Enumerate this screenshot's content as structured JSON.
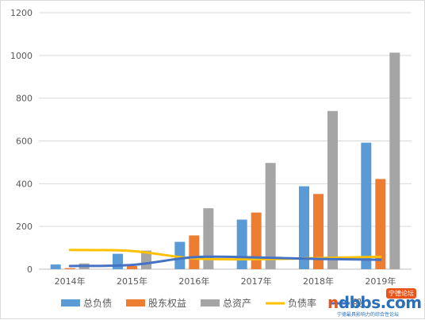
{
  "chart_data": {
    "type": "bar",
    "categories": [
      "2014年",
      "2015年",
      "2016年",
      "2017年",
      "2018年",
      "2019年"
    ],
    "series": [
      {
        "name": "总负债",
        "kind": "bar",
        "color": "#5b9bd5",
        "values": [
          22,
          72,
          128,
          232,
          388,
          592
        ]
      },
      {
        "name": "股东权益",
        "kind": "bar",
        "color": "#ed7d31",
        "values": [
          5,
          15,
          158,
          265,
          352,
          422
        ]
      },
      {
        "name": "总资产",
        "kind": "bar",
        "color": "#a5a5a5",
        "values": [
          27,
          87,
          285,
          497,
          740,
          1013
        ]
      },
      {
        "name": "负债率",
        "kind": "line",
        "color": "#ffc000",
        "values": [
          90,
          85,
          50,
          47,
          52,
          58
        ]
      },
      {
        "name": "股",
        "kind": "line",
        "color": "#4472c4",
        "values": [
          15,
          20,
          56,
          55,
          48,
          44
        ]
      }
    ],
    "yticks": [
      "0",
      "200",
      "400",
      "600",
      "800",
      "1000",
      "1200"
    ],
    "ylim": [
      0,
      1200
    ],
    "grid": true,
    "legend": "bottom"
  },
  "watermark": {
    "badge": "宁德论坛",
    "main_prefix": "n",
    "main_rest": "dbbs.com",
    "sub": "宁德最具影响力的综合性论坛"
  }
}
